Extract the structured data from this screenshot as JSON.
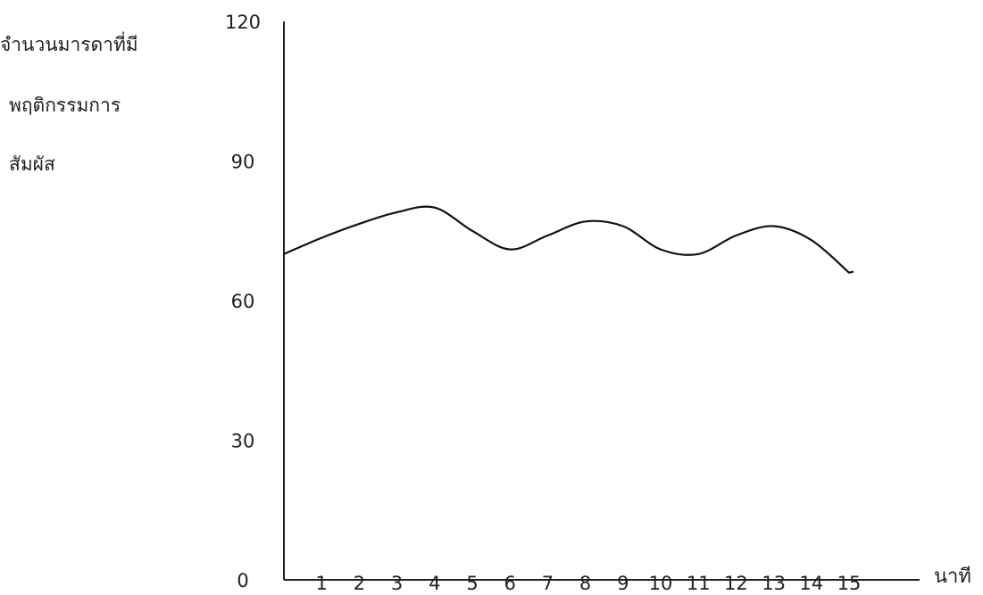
{
  "chart_data": {
    "type": "line",
    "title": "",
    "ylabel_lines": [
      "จำนวนมารดาที่มี",
      "พฤติกรรมการ",
      "สัมผัส"
    ],
    "xlabel": "นาที",
    "ylim": [
      0,
      120
    ],
    "yticks": [
      0,
      30,
      60,
      90,
      120
    ],
    "xlim": [
      0,
      15.8
    ],
    "xticks": [
      1,
      2,
      3,
      4,
      5,
      6,
      7,
      8,
      9,
      10,
      11,
      12,
      13,
      14,
      15
    ],
    "xtick_labels": [
      "1",
      "2",
      "3",
      "4",
      "5",
      "6",
      "7",
      "8",
      "9",
      "10",
      "11",
      "12",
      "13",
      "14",
      "15"
    ],
    "grid": false,
    "series": [
      {
        "x": [
          0,
          1,
          2,
          3,
          4,
          5,
          6,
          7,
          8,
          9,
          10,
          11,
          12,
          13,
          14,
          15
        ],
        "values": [
          70,
          73.5,
          76.5,
          79,
          80,
          75,
          71,
          74,
          77,
          76,
          71,
          70,
          74,
          76,
          73,
          66
        ]
      }
    ]
  }
}
